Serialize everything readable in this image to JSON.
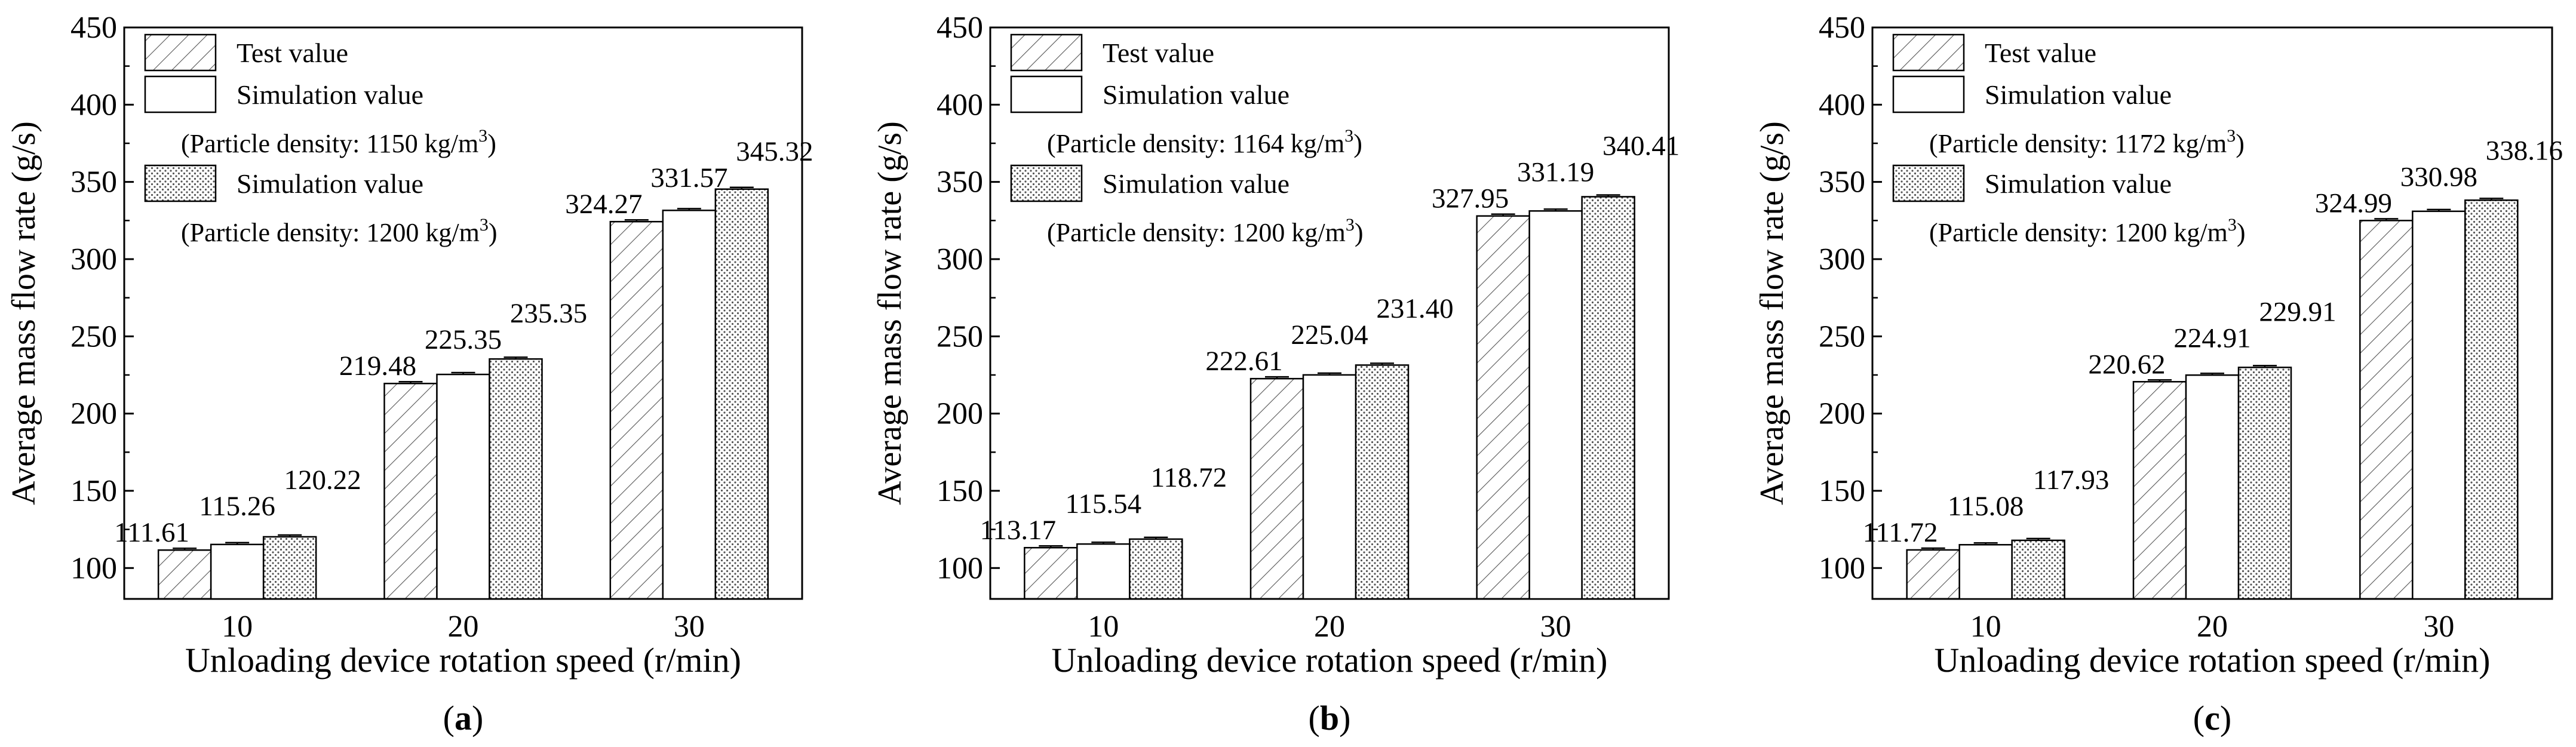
{
  "chart_data": [
    {
      "type": "bar",
      "panel_label": "a",
      "categories": [
        "10",
        "20",
        "30"
      ],
      "series": [
        {
          "name": "Test value",
          "pattern": "hatch",
          "values": [
            111.61,
            219.48,
            324.27
          ]
        },
        {
          "name": "Simulation value",
          "note": "(Particle density: 1150 kg/m",
          "pattern": "none",
          "values": [
            115.26,
            225.35,
            331.57
          ]
        },
        {
          "name": "Simulation value",
          "note": "(Particle density: 1200 kg/m",
          "pattern": "dots",
          "values": [
            120.22,
            235.35,
            345.32
          ]
        }
      ],
      "value_labels": [
        [
          "111.61",
          "219.48",
          "324.27"
        ],
        [
          "115.26",
          "225.35",
          "331.57"
        ],
        [
          "120.22",
          "235.35",
          "345.32"
        ]
      ],
      "xlabel": "Unloading device rotation speed (r/min)",
      "ylabel": "Average mass flow rate (g/s)",
      "ylim": [
        80,
        450
      ],
      "yticks": [
        "100",
        "150",
        "200",
        "250",
        "300",
        "350",
        "400",
        "450"
      ],
      "error_bars": true,
      "legend_position": "top-left"
    },
    {
      "type": "bar",
      "panel_label": "b",
      "categories": [
        "10",
        "20",
        "30"
      ],
      "series": [
        {
          "name": "Test value",
          "pattern": "hatch",
          "values": [
            113.17,
            222.61,
            327.95
          ]
        },
        {
          "name": "Simulation value",
          "note": "(Particle density: 1164 kg/m",
          "pattern": "none",
          "values": [
            115.54,
            225.04,
            331.19
          ]
        },
        {
          "name": "Simulation value",
          "note": "(Particle density: 1200 kg/m",
          "pattern": "dots",
          "values": [
            118.72,
            231.4,
            340.41
          ]
        }
      ],
      "value_labels": [
        [
          "113.17",
          "222.61",
          "327.95"
        ],
        [
          "115.54",
          "225.04",
          "331.19"
        ],
        [
          "118.72",
          "231.40",
          "340.41"
        ]
      ],
      "xlabel": "Unloading device rotation speed (r/min)",
      "ylabel": "Average mass flow rate (g/s)",
      "ylim": [
        80,
        450
      ],
      "yticks": [
        "100",
        "150",
        "200",
        "250",
        "300",
        "350",
        "400",
        "450"
      ],
      "error_bars": true,
      "legend_position": "top-left"
    },
    {
      "type": "bar",
      "panel_label": "c",
      "categories": [
        "10",
        "20",
        "30"
      ],
      "series": [
        {
          "name": "Test value",
          "pattern": "hatch",
          "values": [
            111.72,
            220.62,
            324.99
          ]
        },
        {
          "name": "Simulation value",
          "note": "(Particle density: 1172 kg/m",
          "pattern": "none",
          "values": [
            115.08,
            224.91,
            330.98
          ]
        },
        {
          "name": "Simulation value",
          "note": "(Particle density: 1200 kg/m",
          "pattern": "dots",
          "values": [
            117.93,
            229.91,
            338.16
          ]
        }
      ],
      "value_labels": [
        [
          "111.72",
          "220.62",
          "324.99"
        ],
        [
          "115.08",
          "224.91",
          "330.98"
        ],
        [
          "117.93",
          "229.91",
          "338.16"
        ]
      ],
      "xlabel": "Unloading device rotation speed (r/min)",
      "ylabel": "Average mass flow rate (g/s)",
      "ylim": [
        80,
        450
      ],
      "yticks": [
        "100",
        "150",
        "200",
        "250",
        "300",
        "350",
        "400",
        "450"
      ],
      "error_bars": true,
      "legend_position": "top-left"
    }
  ],
  "units": {
    "superscript": "3",
    "close": ")"
  }
}
